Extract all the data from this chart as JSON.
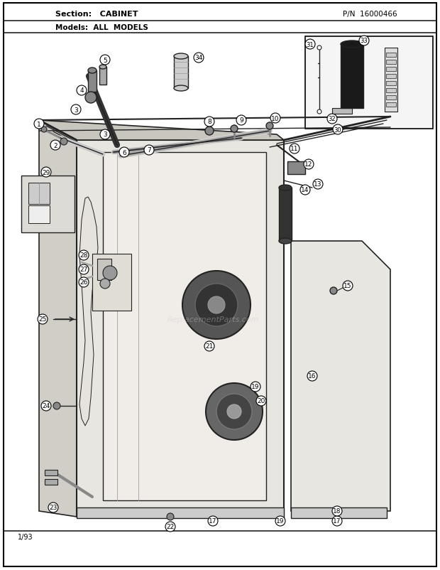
{
  "title_section": "Section:  CABINET",
  "title_pn": "P/N  16000466",
  "title_models": "Models:  ALL  MODELS",
  "date_code": "1/93",
  "bg_color": "#ffffff",
  "fig_width": 6.2,
  "fig_height": 8.03,
  "dpi": 100,
  "lc": "#222222",
  "cabinet_face": "#e8e6e0",
  "cabinet_side": "#d0cec6",
  "cabinet_top": "#c8c6be",
  "inset_bg": "#f5f5f5"
}
